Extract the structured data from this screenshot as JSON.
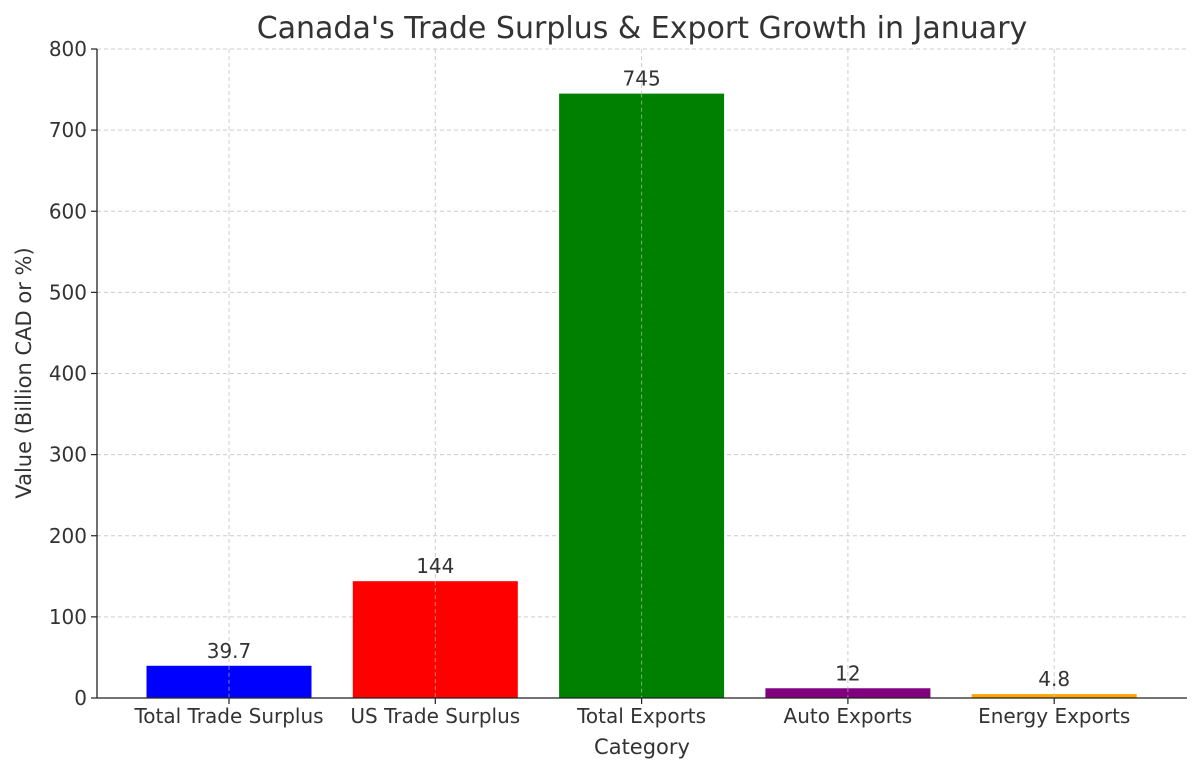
{
  "chart_data": {
    "type": "bar",
    "title": "Canada's Trade Surplus & Export Growth in January",
    "xlabel": "Category",
    "ylabel": "Value (Billion CAD or %)",
    "categories": [
      "Total Trade Surplus",
      "US Trade Surplus",
      "Total Exports",
      "Auto Exports",
      "Energy Exports"
    ],
    "values": [
      39.7,
      144,
      745,
      12,
      4.8
    ],
    "value_labels": [
      "39.7",
      "144",
      "745",
      "12",
      "4.8"
    ],
    "colors": [
      "#0000ff",
      "#ff0000",
      "#008000",
      "#800080",
      "#ffa500"
    ],
    "ylim": [
      0,
      800
    ],
    "yticks": [
      0,
      100,
      200,
      300,
      400,
      500,
      600,
      700,
      800
    ],
    "grid": true,
    "legend": "none"
  }
}
